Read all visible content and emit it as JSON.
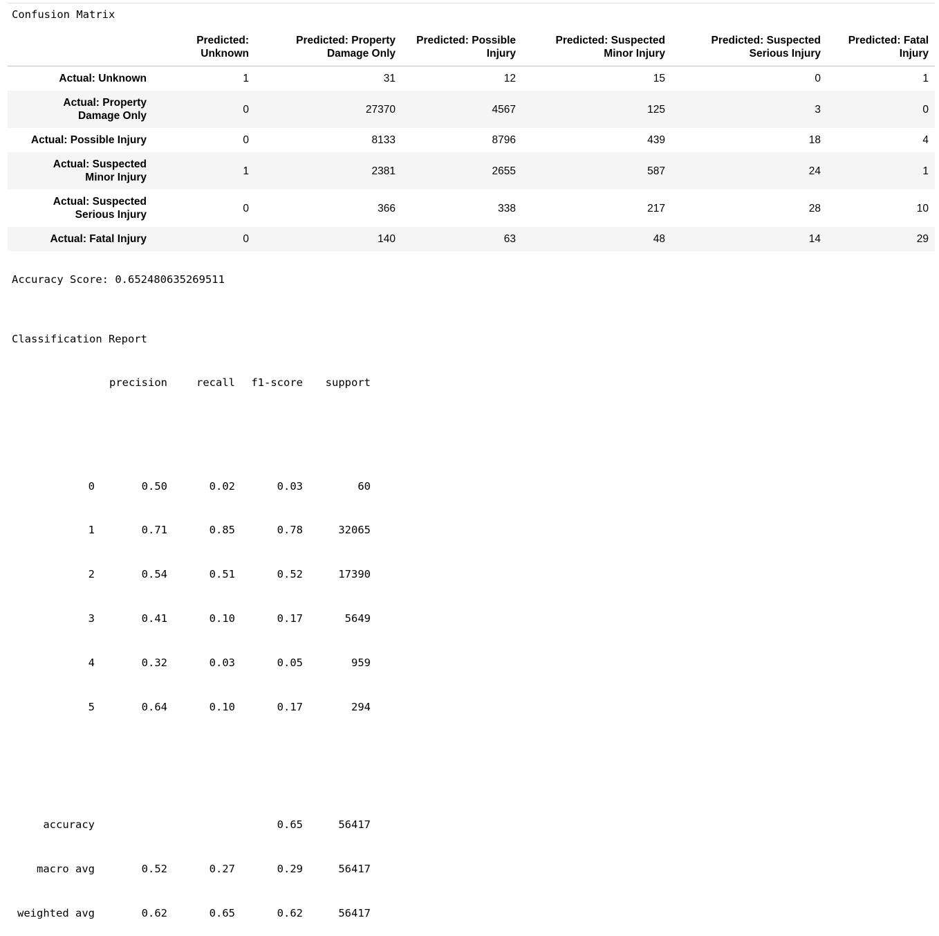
{
  "confusion_matrix": {
    "title": "Confusion Matrix",
    "columns": [
      [
        "Predicted:",
        "Unknown"
      ],
      [
        "Predicted: Property",
        "Damage Only"
      ],
      [
        "Predicted: Possible",
        "Injury"
      ],
      [
        "Predicted: Suspected",
        "Minor Injury"
      ],
      [
        "Predicted: Suspected",
        "Serious Injury"
      ],
      [
        "Predicted: Fatal",
        "Injury"
      ]
    ],
    "rows": [
      {
        "label": [
          "Actual: Unknown"
        ],
        "values": [
          "1",
          "31",
          "12",
          "15",
          "0",
          "1"
        ]
      },
      {
        "label": [
          "Actual: Property",
          "Damage Only"
        ],
        "values": [
          "0",
          "27370",
          "4567",
          "125",
          "3",
          "0"
        ]
      },
      {
        "label": [
          "Actual: Possible Injury"
        ],
        "values": [
          "0",
          "8133",
          "8796",
          "439",
          "18",
          "4"
        ]
      },
      {
        "label": [
          "Actual: Suspected",
          "Minor Injury"
        ],
        "values": [
          "1",
          "2381",
          "2655",
          "587",
          "24",
          "1"
        ]
      },
      {
        "label": [
          "Actual: Suspected",
          "Serious Injury"
        ],
        "values": [
          "0",
          "366",
          "338",
          "217",
          "28",
          "10"
        ]
      },
      {
        "label": [
          "Actual: Fatal Injury"
        ],
        "values": [
          "0",
          "140",
          "63",
          "48",
          "14",
          "29"
        ]
      }
    ]
  },
  "accuracy": {
    "label": "Accuracy Score:",
    "value": "0.652480635269511"
  },
  "report": {
    "title": "Classification Report",
    "headers": [
      "precision",
      "recall",
      "f1-score",
      "support"
    ],
    "class_rows": [
      {
        "label": "0",
        "precision": "0.50",
        "recall": "0.02",
        "f1": "0.03",
        "support": "60"
      },
      {
        "label": "1",
        "precision": "0.71",
        "recall": "0.85",
        "f1": "0.78",
        "support": "32065"
      },
      {
        "label": "2",
        "precision": "0.54",
        "recall": "0.51",
        "f1": "0.52",
        "support": "17390"
      },
      {
        "label": "3",
        "precision": "0.41",
        "recall": "0.10",
        "f1": "0.17",
        "support": "5649"
      },
      {
        "label": "4",
        "precision": "0.32",
        "recall": "0.03",
        "f1": "0.05",
        "support": "959"
      },
      {
        "label": "5",
        "precision": "0.64",
        "recall": "0.10",
        "f1": "0.17",
        "support": "294"
      }
    ],
    "summary_rows": [
      {
        "label": "accuracy",
        "precision": "",
        "recall": "",
        "f1": "0.65",
        "support": "56417"
      },
      {
        "label": "macro avg",
        "precision": "0.52",
        "recall": "0.27",
        "f1": "0.29",
        "support": "56417"
      },
      {
        "label": "weighted avg",
        "precision": "0.62",
        "recall": "0.65",
        "f1": "0.62",
        "support": "56417"
      }
    ]
  }
}
